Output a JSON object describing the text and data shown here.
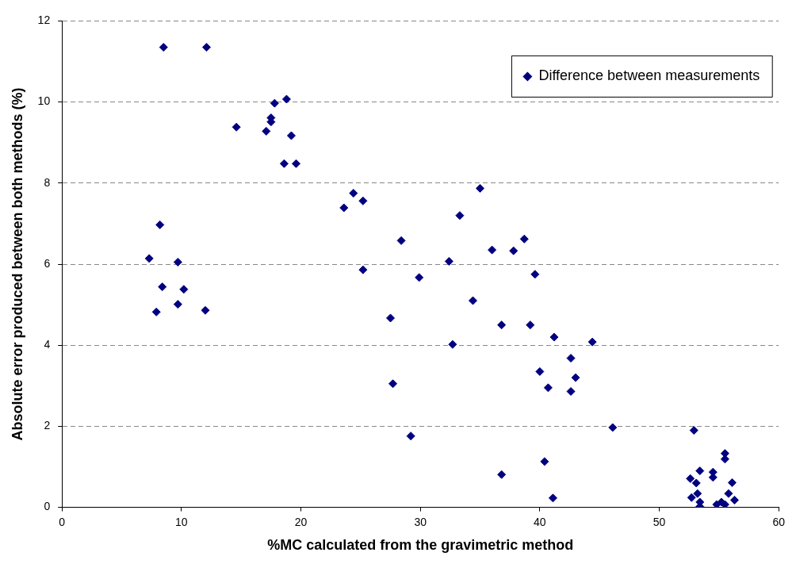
{
  "chart_data": {
    "type": "scatter",
    "xlabel": "%MC calculated from the gravimetric method",
    "ylabel": "Absolute error produced between both methods (%)",
    "xlim": [
      0,
      60
    ],
    "xticks": [
      0,
      10,
      20,
      30,
      40,
      50,
      60
    ],
    "ylim": [
      0,
      12
    ],
    "yticks": [
      0,
      2,
      4,
      6,
      8,
      10,
      12
    ],
    "grid": "y",
    "legend": "top right",
    "marker": "diamond",
    "series": [
      {
        "name": "Difference between measurements",
        "color": "#000080",
        "x": [
          7.3,
          8.2,
          8.5,
          12.1,
          8.4,
          7.9,
          9.7,
          9.7,
          10.2,
          12.0,
          14.6,
          17.1,
          17.5,
          17.5,
          17.8,
          18.8,
          19.2,
          18.6,
          19.6,
          23.6,
          24.4,
          25.2,
          25.2,
          28.4,
          27.5,
          27.7,
          29.9,
          29.2,
          32.4,
          32.7,
          33.3,
          35.0,
          34.4,
          36.0,
          37.8,
          38.7,
          39.6,
          36.8,
          39.2,
          41.2,
          40.0,
          40.7,
          42.6,
          43.0,
          42.6,
          44.4,
          46.1,
          36.8,
          40.4,
          41.1,
          52.9,
          55.5,
          55.5,
          53.4,
          52.6,
          54.5,
          54.5,
          53.1,
          56.1,
          52.7,
          53.2,
          55.8,
          56.3,
          53.4,
          53.4,
          54.8,
          55.2,
          55.5
        ],
        "values": [
          6.14,
          6.97,
          11.35,
          11.35,
          5.44,
          4.82,
          6.05,
          5.01,
          5.38,
          4.86,
          9.38,
          9.28,
          9.61,
          9.51,
          9.97,
          10.07,
          9.17,
          8.48,
          8.48,
          7.39,
          7.75,
          7.56,
          5.86,
          6.58,
          4.67,
          3.05,
          5.67,
          1.76,
          6.07,
          4.02,
          7.2,
          7.87,
          5.1,
          6.35,
          6.33,
          6.62,
          5.75,
          4.5,
          4.5,
          4.2,
          3.35,
          2.95,
          3.68,
          3.2,
          2.86,
          4.08,
          1.97,
          0.81,
          1.13,
          0.23,
          1.9,
          1.33,
          1.19,
          0.9,
          0.71,
          0.87,
          0.74,
          0.6,
          0.61,
          0.24,
          0.34,
          0.34,
          0.18,
          0.13,
          0.02,
          0.07,
          0.13,
          0.07
        ]
      }
    ]
  }
}
